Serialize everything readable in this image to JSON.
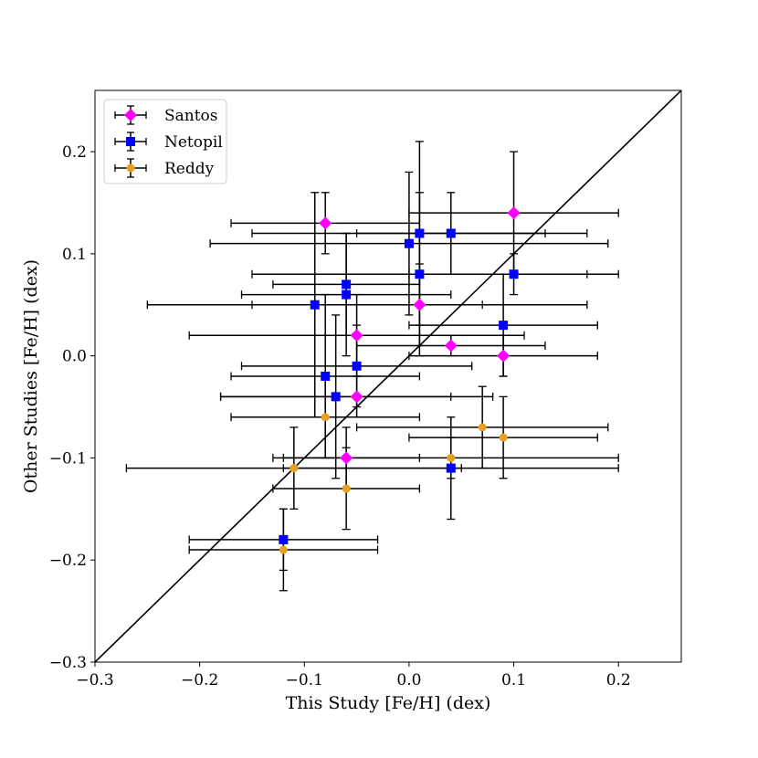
{
  "chart_data": {
    "type": "scatter",
    "title": "",
    "xlabel": "This Study [Fe/H] (dex)",
    "ylabel": "Other Studies [Fe/H] (dex)",
    "xlim": [
      -0.3,
      0.26
    ],
    "ylim": [
      -0.3,
      0.26
    ],
    "x_ticks": [
      -0.3,
      -0.2,
      -0.1,
      0.0,
      0.1,
      0.2
    ],
    "x_tick_labels": [
      "−0.3",
      "−0.2",
      "−0.1",
      "0.0",
      "0.1",
      "0.2"
    ],
    "y_ticks": [
      -0.3,
      -0.2,
      -0.1,
      0.0,
      0.1,
      0.2
    ],
    "y_tick_labels": [
      "−0.3",
      "−0.2",
      "−0.1",
      "0.0",
      "0.1",
      "0.2"
    ],
    "grid": false,
    "legend_position": "top-left",
    "reference_line": "one-to-one (y = x)",
    "series": [
      {
        "name": "Santos",
        "color": "#ff00ff",
        "marker": "diamond",
        "points": [
          {
            "x": -0.08,
            "y": 0.13,
            "xerr": 0.09,
            "yerr": 0.03
          },
          {
            "x": 0.1,
            "y": 0.14,
            "xerr": 0.1,
            "yerr": 0.06
          },
          {
            "x": 0.01,
            "y": 0.05,
            "xerr": 0.16,
            "yerr": 0.04
          },
          {
            "x": -0.05,
            "y": 0.02,
            "xerr": 0.16,
            "yerr": 0.04
          },
          {
            "x": 0.04,
            "y": 0.01,
            "xerr": 0.09,
            "yerr": 0.01
          },
          {
            "x": 0.09,
            "y": 0.0,
            "xerr": 0.09,
            "yerr": 0.02
          },
          {
            "x": -0.05,
            "y": -0.04,
            "xerr": 0.13,
            "yerr": 0.02
          },
          {
            "x": -0.06,
            "y": -0.1,
            "xerr": 0.07,
            "yerr": 0.03
          }
        ]
      },
      {
        "name": "Netopil",
        "color": "#0000ff",
        "marker": "square",
        "points": [
          {
            "x": 0.01,
            "y": 0.12,
            "xerr": 0.16,
            "yerr": 0.09
          },
          {
            "x": 0.04,
            "y": 0.12,
            "xerr": 0.09,
            "yerr": 0.04
          },
          {
            "x": 0.0,
            "y": 0.11,
            "xerr": 0.19,
            "yerr": 0.07
          },
          {
            "x": 0.01,
            "y": 0.08,
            "xerr": 0.16,
            "yerr": 0.08
          },
          {
            "x": 0.1,
            "y": 0.08,
            "xerr": 0.1,
            "yerr": 0.02
          },
          {
            "x": -0.06,
            "y": 0.07,
            "xerr": 0.07,
            "yerr": 0.05
          },
          {
            "x": -0.06,
            "y": 0.06,
            "xerr": 0.1,
            "yerr": 0.06
          },
          {
            "x": -0.09,
            "y": 0.05,
            "xerr": 0.16,
            "yerr": 0.11
          },
          {
            "x": 0.09,
            "y": 0.03,
            "xerr": 0.09,
            "yerr": 0.05
          },
          {
            "x": -0.05,
            "y": -0.01,
            "xerr": 0.11,
            "yerr": 0.04
          },
          {
            "x": -0.08,
            "y": -0.02,
            "xerr": 0.09,
            "yerr": 0.08
          },
          {
            "x": -0.07,
            "y": -0.04,
            "xerr": 0.11,
            "yerr": 0.08
          },
          {
            "x": 0.04,
            "y": -0.11,
            "xerr": 0.16,
            "yerr": 0.05
          },
          {
            "x": -0.12,
            "y": -0.18,
            "xerr": 0.09,
            "yerr": 0.03
          }
        ]
      },
      {
        "name": "Reddy",
        "color": "#e8a020",
        "marker": "circle",
        "points": [
          {
            "x": -0.08,
            "y": -0.06,
            "xerr": 0.09,
            "yerr": 0.04
          },
          {
            "x": 0.07,
            "y": -0.07,
            "xerr": 0.12,
            "yerr": 0.04
          },
          {
            "x": 0.09,
            "y": -0.08,
            "xerr": 0.09,
            "yerr": 0.04
          },
          {
            "x": 0.04,
            "y": -0.1,
            "xerr": 0.16,
            "yerr": 0.02
          },
          {
            "x": -0.11,
            "y": -0.11,
            "xerr": 0.16,
            "yerr": 0.04
          },
          {
            "x": -0.06,
            "y": -0.13,
            "xerr": 0.07,
            "yerr": 0.04
          },
          {
            "x": -0.12,
            "y": -0.19,
            "xerr": 0.09,
            "yerr": 0.04
          }
        ]
      }
    ]
  }
}
